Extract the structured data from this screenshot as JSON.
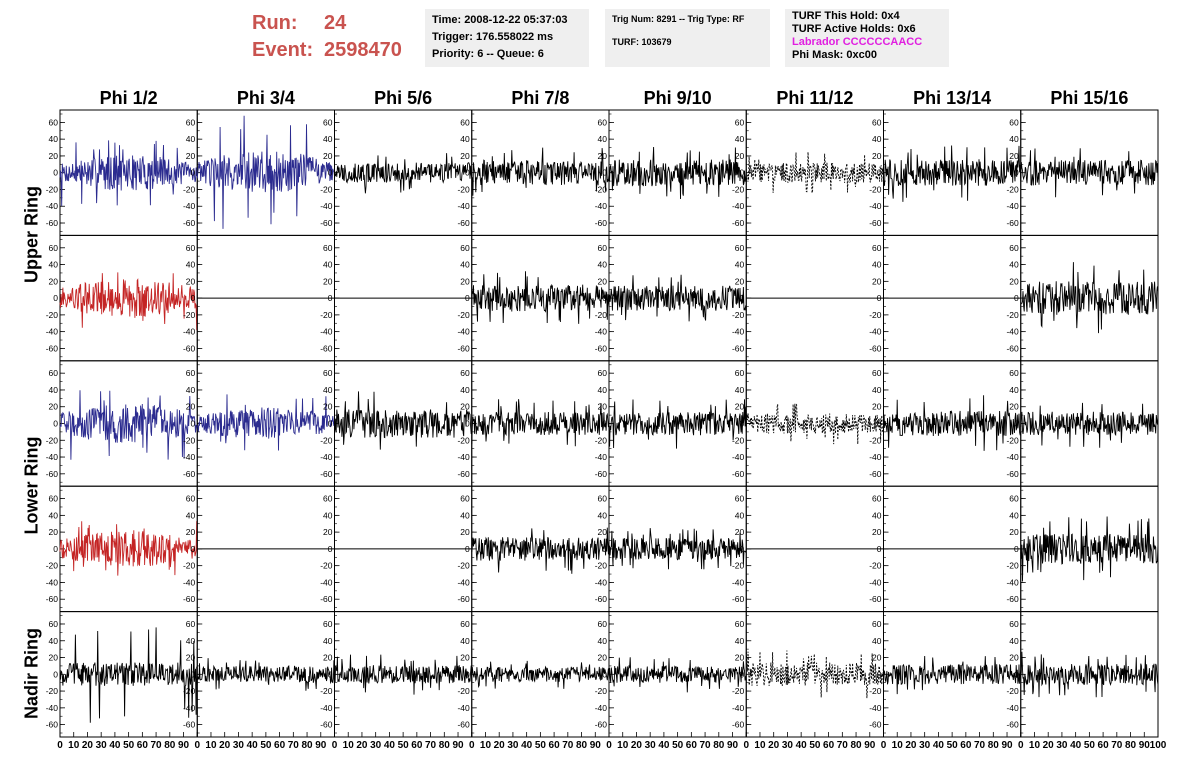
{
  "run": {
    "run_label": "Run:",
    "run_value": "24",
    "event_label": "Event:",
    "event_value": "2598470"
  },
  "info1": {
    "time": "Time: 2008-12-22 05:37:03",
    "trigger": "Trigger: 176.558022 ms",
    "priority": "Priority: 6 -- Queue: 6"
  },
  "info2": {
    "trig": "Trig Num: 8291 -- Trig Type: RF",
    "turf": "TURF: 103679"
  },
  "info3": {
    "this_hold": "TURF This Hold: 0x4",
    "active_holds": "TURF Active Holds: 0x6",
    "labrador": "Labrador CCCCCCAACC",
    "phi_mask": "Phi Mask: 0xc00"
  },
  "columns": [
    "Phi 1/2",
    "Phi 3/4",
    "Phi 5/6",
    "Phi 7/8",
    "Phi 9/10",
    "Phi 11/12",
    "Phi 13/14",
    "Phi 15/16"
  ],
  "rows": [
    "Upper Ring",
    "Lower Ring",
    "Nadir Ring"
  ],
  "colors": {
    "blue": "#2b2b8f",
    "red": "#c42424",
    "black": "#000000",
    "run_text": "#c9534f",
    "magenta": "#e020e0"
  },
  "chart_data": {
    "type": "line",
    "description_axes": {
      "xlim": [
        0,
        100
      ],
      "ylim": [
        -70,
        70
      ]
    },
    "x_ticks": [
      "0",
      "10",
      "20",
      "30",
      "40",
      "50",
      "60",
      "70",
      "80",
      "90",
      "100"
    ],
    "y_ticks": [
      "60",
      "40",
      "20",
      "0",
      "-20",
      "-40",
      "-60"
    ],
    "grid": false,
    "panels": [
      [
        {
          "style": "blue",
          "amp": 18,
          "spike": 40
        },
        {
          "style": "blue",
          "amp": 22,
          "spike": 70
        },
        {
          "style": "black",
          "amp": 12,
          "spike": 25
        },
        {
          "style": "black",
          "amp": 15,
          "spike": 30
        },
        {
          "style": "black",
          "amp": 16,
          "spike": 35
        },
        {
          "style": "dashed",
          "amp": 12,
          "spike": 25
        },
        {
          "style": "black",
          "amp": 16,
          "spike": 35
        },
        {
          "style": "black",
          "amp": 15,
          "spike": 30
        }
      ],
      [
        {
          "style": "red",
          "amp": 20,
          "spike": 40
        },
        {
          "style": "flat",
          "amp": 0,
          "spike": 0
        },
        {
          "style": "flat",
          "amp": 0,
          "spike": 0
        },
        {
          "style": "black",
          "amp": 16,
          "spike": 35
        },
        {
          "style": "black",
          "amp": 15,
          "spike": 30
        },
        {
          "style": "flat",
          "amp": 0,
          "spike": 0
        },
        {
          "style": "flat",
          "amp": 0,
          "spike": 0
        },
        {
          "style": "black",
          "amp": 20,
          "spike": 45
        }
      ],
      [
        {
          "style": "blue",
          "amp": 20,
          "spike": 45
        },
        {
          "style": "blue",
          "amp": 16,
          "spike": 35
        },
        {
          "style": "black",
          "amp": 17,
          "spike": 40
        },
        {
          "style": "black",
          "amp": 14,
          "spike": 30
        },
        {
          "style": "black",
          "amp": 14,
          "spike": 30
        },
        {
          "style": "dashed",
          "amp": 12,
          "spike": 25
        },
        {
          "style": "black",
          "amp": 15,
          "spike": 35
        },
        {
          "style": "black",
          "amp": 14,
          "spike": 30
        }
      ],
      [
        {
          "style": "red",
          "amp": 18,
          "spike": 35
        },
        {
          "style": "flat",
          "amp": 0,
          "spike": 0
        },
        {
          "style": "flat",
          "amp": 0,
          "spike": 0
        },
        {
          "style": "black",
          "amp": 14,
          "spike": 30
        },
        {
          "style": "black",
          "amp": 13,
          "spike": 25
        },
        {
          "style": "flat",
          "amp": 0,
          "spike": 0
        },
        {
          "style": "flat",
          "amp": 0,
          "spike": 0
        },
        {
          "style": "black",
          "amp": 18,
          "spike": 40
        }
      ],
      [
        {
          "style": "black",
          "amp": 14,
          "spike": 60
        },
        {
          "style": "black",
          "amp": 10,
          "spike": 20
        },
        {
          "style": "black",
          "amp": 11,
          "spike": 25
        },
        {
          "style": "black",
          "amp": 9,
          "spike": 18
        },
        {
          "style": "black",
          "amp": 10,
          "spike": 22
        },
        {
          "style": "dashed",
          "amp": 14,
          "spike": 30
        },
        {
          "style": "black",
          "amp": 12,
          "spike": 25
        },
        {
          "style": "black",
          "amp": 13,
          "spike": 28
        }
      ]
    ]
  }
}
